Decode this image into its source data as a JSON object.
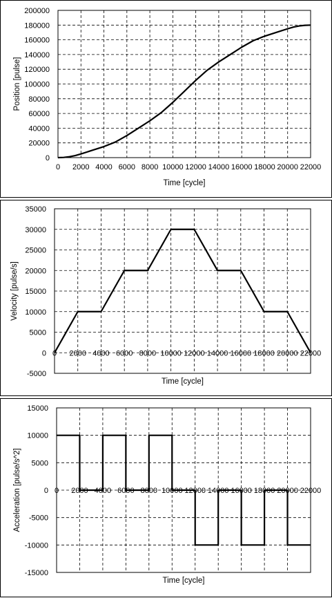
{
  "chart_data": [
    {
      "type": "line",
      "title": "",
      "xlabel": "Time [cycle]",
      "ylabel": "Position [pulse]",
      "xlim": [
        0,
        22000
      ],
      "ylim": [
        0,
        200000
      ],
      "x_ticks": [
        "0",
        "2000",
        "4000",
        "6000",
        "8000",
        "10000",
        "12000",
        "14000",
        "16000",
        "18000",
        "20000",
        "22000"
      ],
      "y_ticks": [
        "0",
        "20000",
        "40000",
        "60000",
        "80000",
        "100000",
        "120000",
        "140000",
        "160000",
        "180000",
        "200000"
      ],
      "grid": true,
      "series": [
        {
          "x": [
            0,
            500,
            1000,
            1500,
            2000,
            3000,
            4000,
            5000,
            6000,
            7000,
            8000,
            9000,
            10000,
            11000,
            12000,
            13000,
            14000,
            15000,
            16000,
            17000,
            18000,
            19000,
            20000,
            20500,
            21000,
            21500,
            22000
          ],
          "y": [
            0,
            300,
            1200,
            2800,
            5000,
            10000,
            15000,
            21200,
            30000,
            40000,
            50000,
            61200,
            75000,
            90000,
            105000,
            118800,
            130000,
            140000,
            150000,
            158800,
            165000,
            170000,
            175000,
            177300,
            178800,
            179700,
            180000
          ]
        }
      ]
    },
    {
      "type": "line",
      "title": "",
      "xlabel": "Time [cycle]",
      "ylabel": "Velocity [pulse/s]",
      "xlim": [
        0,
        22000
      ],
      "ylim": [
        -5000,
        35000
      ],
      "x_ticks": [
        "0",
        "2000",
        "4000",
        "6000",
        "8000",
        "10000",
        "12000",
        "14000",
        "16000",
        "18000",
        "20000",
        "22000"
      ],
      "y_ticks": [
        "-5000",
        "0",
        "5000",
        "10000",
        "15000",
        "20000",
        "25000",
        "30000",
        "35000"
      ],
      "grid": true,
      "series": [
        {
          "x": [
            0,
            2000,
            4000,
            6000,
            8000,
            10000,
            12000,
            14000,
            16000,
            18000,
            20000,
            22000
          ],
          "y": [
            0,
            10000,
            10000,
            20000,
            20000,
            30000,
            30000,
            20000,
            20000,
            10000,
            10000,
            0
          ]
        }
      ]
    },
    {
      "type": "line",
      "title": "",
      "xlabel": "Time [cycle]",
      "ylabel": "Acceleration [pulse/s^2]",
      "xlim": [
        0,
        22000
      ],
      "ylim": [
        -15000,
        15000
      ],
      "x_ticks": [
        "0",
        "2000",
        "4000",
        "6000",
        "8000",
        "10000",
        "12000",
        "14000",
        "16000",
        "18000",
        "20000",
        "22000"
      ],
      "y_ticks": [
        "-15000",
        "-10000",
        "-5000",
        "0",
        "5000",
        "10000",
        "15000"
      ],
      "grid": true,
      "series": [
        {
          "x": [
            0,
            2000,
            2000,
            4000,
            4000,
            6000,
            6000,
            8000,
            8000,
            10000,
            10000,
            12000,
            12000,
            14000,
            14000,
            16000,
            16000,
            18000,
            18000,
            20000,
            20000,
            22000
          ],
          "y": [
            10000,
            10000,
            0,
            0,
            10000,
            10000,
            0,
            0,
            10000,
            10000,
            0,
            0,
            -10000,
            -10000,
            0,
            0,
            -10000,
            -10000,
            0,
            0,
            -10000,
            -10000
          ]
        }
      ]
    }
  ]
}
